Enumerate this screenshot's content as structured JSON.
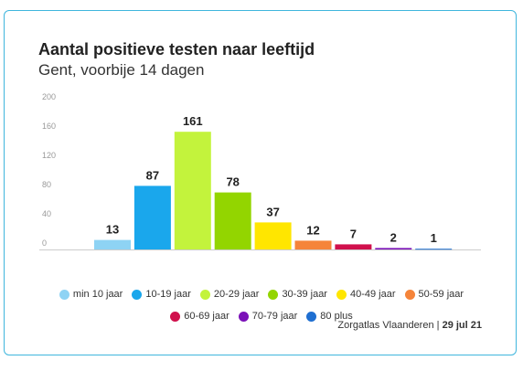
{
  "chart_data": {
    "type": "bar",
    "title": "Aantal positieve testen naar leeftijd",
    "subtitle": "Gent, voorbije 14 dagen",
    "categories": [
      "min 10 jaar",
      "10-19 jaar",
      "20-29 jaar",
      "30-39 jaar",
      "40-49 jaar",
      "50-59 jaar",
      "60-69 jaar",
      "70-79 jaar",
      "80 plus"
    ],
    "values": [
      13,
      87,
      161,
      78,
      37,
      12,
      7,
      2,
      1
    ],
    "colors": [
      "#8ed3f4",
      "#1aa7ec",
      "#c3f33c",
      "#93d500",
      "#ffe600",
      "#f5843a",
      "#d0104c",
      "#7b11b8",
      "#1f6fd1"
    ],
    "ylim": [
      0,
      200
    ],
    "yticks": [
      "0",
      "40",
      "80",
      "120",
      "160",
      "200"
    ],
    "grid": false,
    "legend_position": "bottom",
    "source": "Zorgatlas Vlaanderen",
    "date": "29 jul 21"
  }
}
